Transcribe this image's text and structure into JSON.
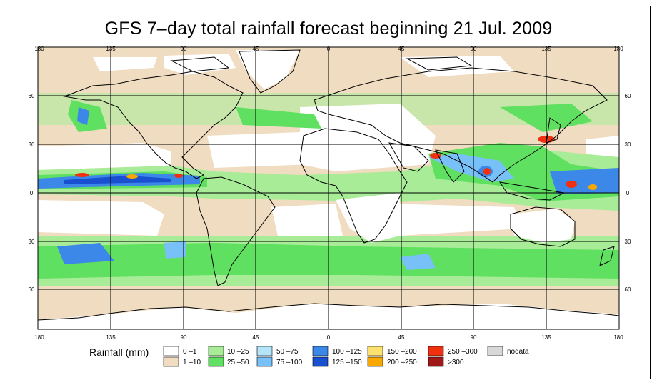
{
  "title": "GFS 7–day total rainfall forecast beginning 21 Jul. 2009",
  "axes": {
    "lon_labels": [
      "180",
      "135",
      "90",
      "45",
      "0",
      "45",
      "90",
      "135",
      "180"
    ],
    "lat_labels_left": [
      "60",
      "30",
      "0",
      "30",
      "60"
    ],
    "lat_labels_right": [
      "60",
      "30",
      "0",
      "30",
      "60"
    ]
  },
  "legend": {
    "title": "Rainfall (mm)",
    "items": [
      {
        "label": "0 –1",
        "color": "#ffffff"
      },
      {
        "label": "1 –10",
        "color": "#f0dcc0"
      },
      {
        "label": "10 –25",
        "color": "#a8ec98"
      },
      {
        "label": "25 –50",
        "color": "#60e060"
      },
      {
        "label": "50 –75",
        "color": "#b4e4f8"
      },
      {
        "label": "75 –100",
        "color": "#78c0f8"
      },
      {
        "label": "100 –125",
        "color": "#3c88e8"
      },
      {
        "label": "125 –150",
        "color": "#1850d0"
      },
      {
        "label": "150 –200",
        "color": "#fce070"
      },
      {
        "label": "200 –250",
        "color": "#f8a800"
      },
      {
        "label": "250 –300",
        "color": "#f03010"
      },
      {
        "label": ">300",
        "color": "#a01818"
      },
      {
        "label": "nodata",
        "color": "#d8d8d8"
      }
    ]
  }
}
